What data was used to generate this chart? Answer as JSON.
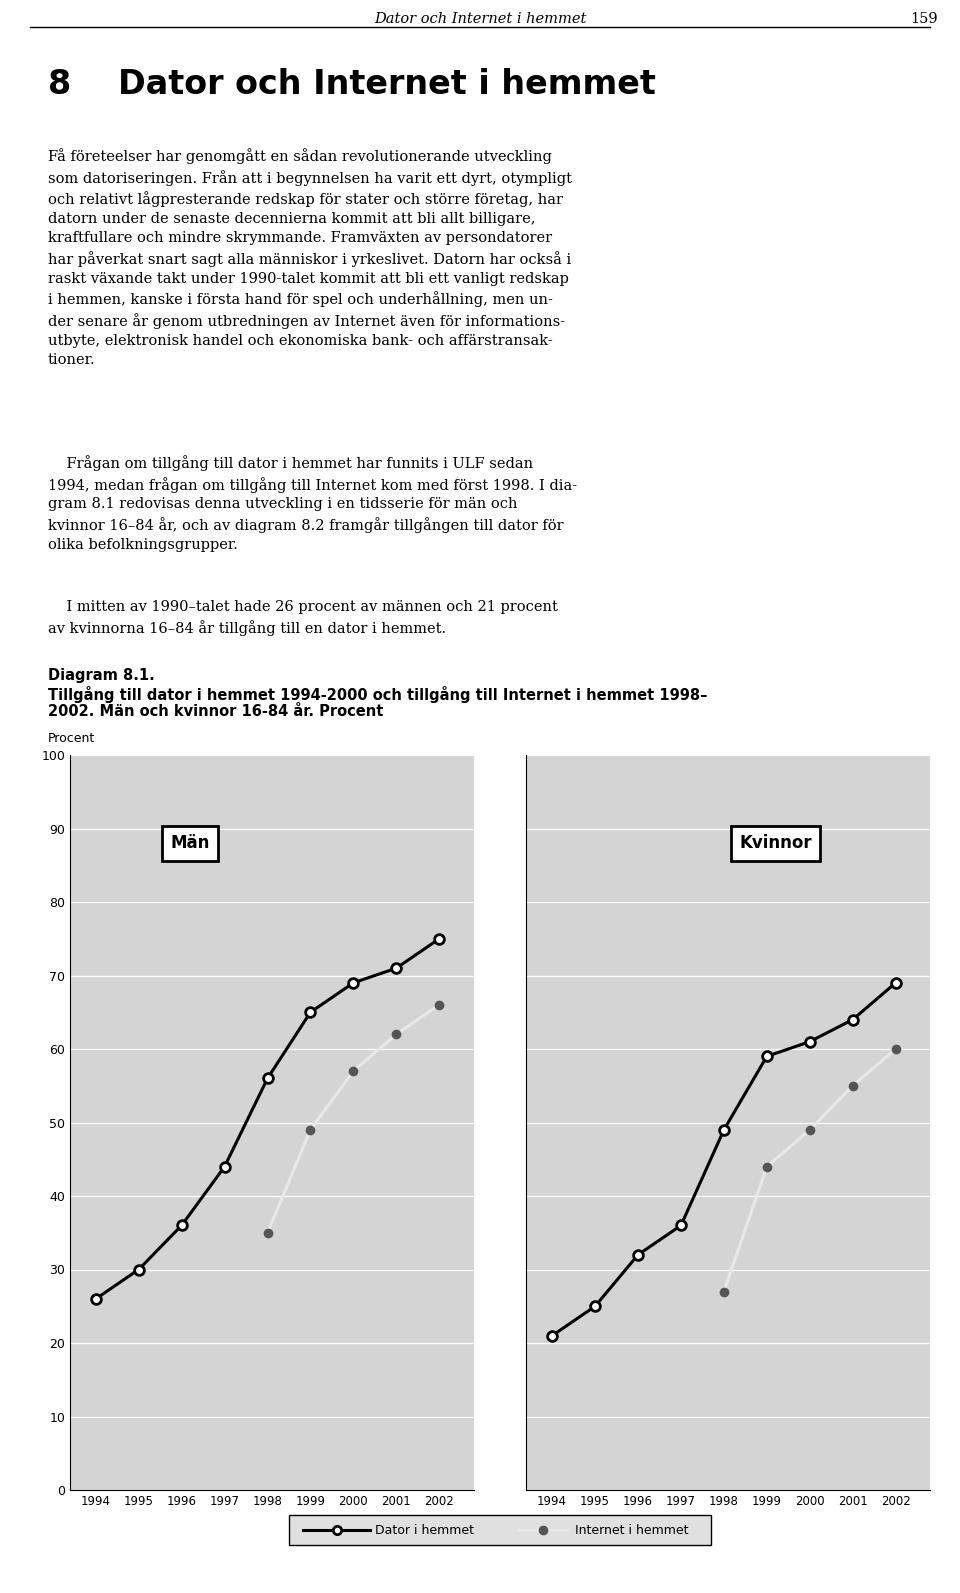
{
  "header_text": "Dator och Internet i hemmet",
  "page_number": "159",
  "chapter_number": "8",
  "chapter_title": "Dator och Internet i hemmet",
  "para1_lines": [
    "Få företeelser har genomgått en sådan revolutionerande utveckling",
    "som datoriseringen. Från att i begynnelsen ha varit ett dyrt, otympligt",
    "och relativt lågpresterande redskap för stater och större företag, har",
    "datorn under de senaste decennierna kommit att bli allt billigare,",
    "kraftfullare och mindre skrymmande. Framväxten av persondatorer",
    "har påverkat snart sagt alla människor i yrkeslivet. Datorn har också i",
    "raskt växande takt under 1990-talet kommit att bli ett vanligt redskap",
    "i hemmen, kanske i första hand för spel och underhållning, men un-",
    "der senare år genom utbredningen av Internet även för informations-",
    "utbyte, elektronisk handel och ekonomiska bank- och affärstransak-",
    "tioner."
  ],
  "para2_lines": [
    "    Frågan om tillgång till dator i hemmet har funnits i ULF sedan",
    "1994, medan frågan om tillgång till Internet kom med först 1998. I dia-",
    "gram 8.1 redovisas denna utveckling i en tidsserie för män och",
    "kvinnor 16–84 år, och av diagram 8.2 framgår tillgången till dator för",
    "olika befolkningsgrupper."
  ],
  "para3_lines": [
    "    I mitten av 1990–talet hade 26 procent av männen och 21 procent",
    "av kvinnorna 16–84 år tillgång till en dator i hemmet."
  ],
  "diagram_label": "Diagram 8.1.",
  "diagram_title_line1": "Tillgång till dator i hemmet 1994-2000 och tillgång till Internet i hemmet 1998–",
  "diagram_title_line2": "2002. Män och kvinnor 16-84 år. Procent",
  "ylabel": "Procent",
  "ymin": 0,
  "ymax": 100,
  "yticks": [
    0,
    10,
    20,
    30,
    40,
    50,
    60,
    70,
    80,
    90,
    100
  ],
  "plot_bg_color": "#d4d4d4",
  "men_label": "Män",
  "women_label": "Kvinnor",
  "men_dator_years": [
    1994,
    1995,
    1996,
    1997,
    1998,
    1999,
    2000,
    2001,
    2002
  ],
  "men_dator_values": [
    26,
    30,
    36,
    44,
    56,
    65,
    69,
    71,
    75
  ],
  "men_internet_years": [
    1998,
    1999,
    2000,
    2001,
    2002
  ],
  "men_internet_values": [
    35,
    49,
    57,
    62,
    66
  ],
  "women_dator_years": [
    1994,
    1995,
    1996,
    1997,
    1998,
    1999,
    2000,
    2001,
    2002
  ],
  "women_dator_values": [
    21,
    25,
    32,
    36,
    49,
    59,
    61,
    64,
    69
  ],
  "women_internet_years": [
    1998,
    1999,
    2000,
    2001,
    2002
  ],
  "women_internet_values": [
    27,
    44,
    49,
    55,
    60
  ],
  "dator_line_color": "#000000",
  "internet_line_color": "#e8e8e8",
  "internet_marker_color": "#555555",
  "legend_dator": "Dator i hemmet",
  "legend_internet": "Internet i hemmet",
  "x_years": [
    1994,
    1995,
    1996,
    1997,
    1998,
    1999,
    2000,
    2001,
    2002
  ]
}
